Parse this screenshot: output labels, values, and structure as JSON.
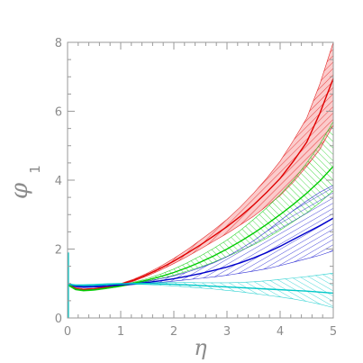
{
  "chart_data": {
    "type": "line",
    "title": "",
    "xlabel": "η",
    "ylabel_main": "φ",
    "ylabel_sub": "1",
    "xlim": [
      0,
      5
    ],
    "ylim": [
      0,
      8
    ],
    "x_ticks": [
      "0",
      "1",
      "2",
      "3",
      "4",
      "5"
    ],
    "y_ticks": [
      "0",
      "2",
      "4",
      "6",
      "8"
    ],
    "grid": false,
    "series": [
      {
        "color": "#e00000",
        "band_fill": "#f7a0a0",
        "x": [
          0,
          0.15,
          0.3,
          0.5,
          0.75,
          1.0,
          1.25,
          1.5,
          1.75,
          2.0,
          2.25,
          2.5,
          2.75,
          3.0,
          3.25,
          3.5,
          3.75,
          4.0,
          4.25,
          4.5,
          4.75,
          5.0
        ],
        "mid": [
          0.98,
          0.85,
          0.82,
          0.84,
          0.9,
          0.98,
          1.1,
          1.26,
          1.44,
          1.65,
          1.88,
          2.12,
          2.38,
          2.65,
          2.95,
          3.28,
          3.65,
          4.05,
          4.55,
          5.1,
          5.95,
          6.95
        ],
        "low": [
          0.95,
          0.82,
          0.8,
          0.82,
          0.88,
          0.96,
          1.07,
          1.22,
          1.39,
          1.58,
          1.78,
          2.0,
          2.23,
          2.45,
          2.7,
          2.95,
          3.25,
          3.55,
          3.95,
          4.4,
          4.9,
          5.6
        ],
        "high": [
          1.01,
          0.88,
          0.85,
          0.86,
          0.92,
          1.0,
          1.13,
          1.3,
          1.5,
          1.73,
          1.98,
          2.26,
          2.55,
          2.86,
          3.22,
          3.62,
          4.06,
          4.55,
          5.15,
          5.8,
          6.8,
          8.0
        ]
      },
      {
        "color": "#00cc00",
        "band_fill": "#8ae88a",
        "x": [
          0,
          0.15,
          0.3,
          0.5,
          0.75,
          1.0,
          1.25,
          1.5,
          1.75,
          2.0,
          2.25,
          2.5,
          2.75,
          3.0,
          3.25,
          3.5,
          3.75,
          4.0,
          4.25,
          4.5,
          4.75,
          5.0
        ],
        "mid": [
          0.98,
          0.83,
          0.8,
          0.82,
          0.87,
          0.93,
          1.01,
          1.1,
          1.2,
          1.32,
          1.46,
          1.62,
          1.8,
          2.0,
          2.22,
          2.46,
          2.72,
          3.0,
          3.3,
          3.62,
          3.98,
          4.4
        ],
        "low": [
          0.95,
          0.81,
          0.78,
          0.8,
          0.85,
          0.91,
          0.98,
          1.06,
          1.14,
          1.24,
          1.36,
          1.48,
          1.62,
          1.78,
          1.95,
          2.12,
          2.32,
          2.55,
          2.8,
          3.05,
          3.35,
          3.7
        ],
        "high": [
          1.01,
          0.86,
          0.83,
          0.84,
          0.89,
          0.95,
          1.04,
          1.14,
          1.27,
          1.42,
          1.6,
          1.8,
          2.02,
          2.26,
          2.54,
          2.86,
          3.2,
          3.58,
          4.0,
          4.5,
          5.05,
          5.7
        ]
      },
      {
        "color": "#0000cc",
        "band_fill": "#8888ee",
        "x": [
          0,
          0.15,
          0.3,
          0.5,
          0.75,
          1.0,
          1.25,
          1.5,
          1.75,
          2.0,
          2.25,
          2.5,
          2.75,
          3.0,
          3.25,
          3.5,
          3.75,
          4.0,
          4.25,
          4.5,
          4.75,
          5.0
        ],
        "mid": [
          1.0,
          0.92,
          0.9,
          0.91,
          0.93,
          0.96,
          0.99,
          1.03,
          1.08,
          1.14,
          1.21,
          1.29,
          1.38,
          1.48,
          1.6,
          1.74,
          1.9,
          2.08,
          2.28,
          2.48,
          2.68,
          2.9
        ],
        "low": [
          0.98,
          0.9,
          0.88,
          0.89,
          0.91,
          0.94,
          0.97,
          1.0,
          1.03,
          1.07,
          1.11,
          1.15,
          1.19,
          1.24,
          1.3,
          1.36,
          1.43,
          1.52,
          1.62,
          1.72,
          1.82,
          1.95
        ],
        "high": [
          1.02,
          0.94,
          0.92,
          0.93,
          0.96,
          0.99,
          1.02,
          1.07,
          1.14,
          1.22,
          1.33,
          1.46,
          1.6,
          1.78,
          2.0,
          2.24,
          2.52,
          2.82,
          3.12,
          3.4,
          3.65,
          3.85
        ]
      },
      {
        "color": "#00c8c8",
        "band_fill": "#8eeeee",
        "x": [
          0,
          0.15,
          0.3,
          0.5,
          0.75,
          1.0,
          1.25,
          1.5,
          1.75,
          2.0,
          2.25,
          2.5,
          2.75,
          3.0,
          3.25,
          3.5,
          3.75,
          4.0,
          4.25,
          4.5,
          4.75,
          5.0
        ],
        "mid": [
          0.98,
          0.95,
          0.95,
          0.96,
          0.98,
          0.99,
          1.0,
          1.0,
          0.99,
          0.98,
          0.96,
          0.94,
          0.92,
          0.9,
          0.88,
          0.86,
          0.84,
          0.82,
          0.8,
          0.78,
          0.75,
          0.72
        ],
        "low": [
          0.96,
          0.93,
          0.93,
          0.94,
          0.96,
          0.97,
          0.98,
          0.97,
          0.95,
          0.93,
          0.9,
          0.87,
          0.84,
          0.8,
          0.76,
          0.71,
          0.66,
          0.61,
          0.55,
          0.48,
          0.4,
          0.3
        ],
        "high": [
          1.0,
          0.97,
          0.97,
          0.98,
          1.0,
          1.01,
          1.02,
          1.03,
          1.03,
          1.03,
          1.03,
          1.02,
          1.02,
          1.02,
          1.03,
          1.05,
          1.08,
          1.12,
          1.16,
          1.2,
          1.25,
          1.3
        ]
      }
    ]
  }
}
